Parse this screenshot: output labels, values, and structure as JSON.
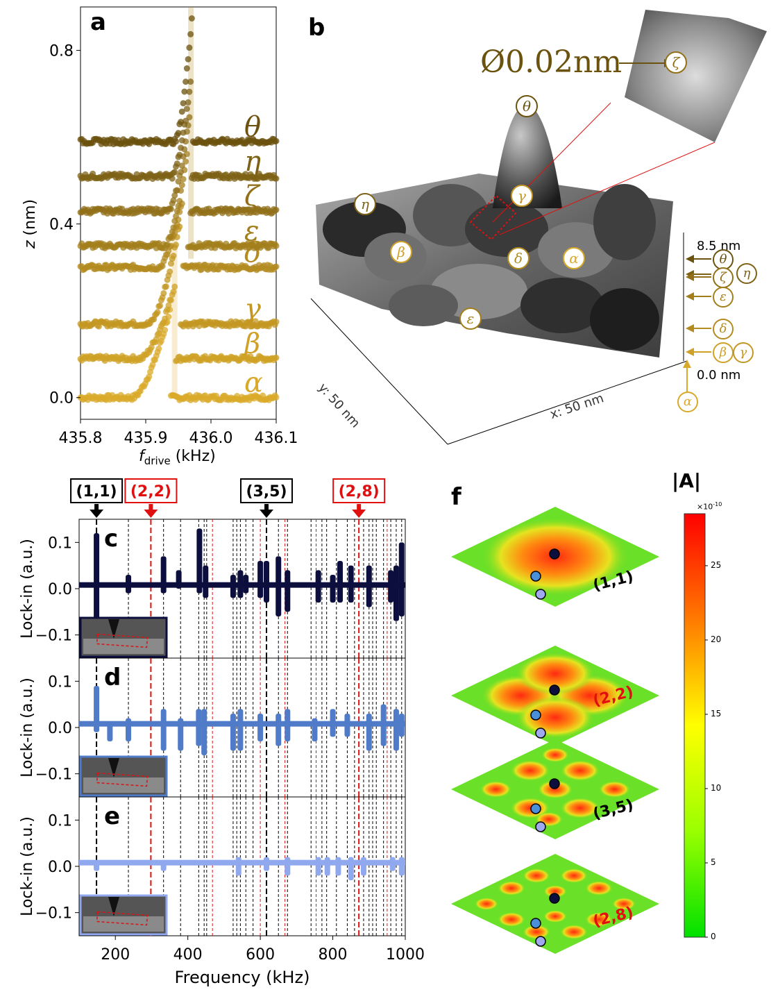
{
  "panel_labels": {
    "a": "a",
    "b": "b",
    "c": "c",
    "d": "d",
    "e": "e",
    "f": "f"
  },
  "colors": {
    "gold_dark": "#6b520e",
    "gold_mid": "#9a7a1e",
    "gold_light": "#d9a92a",
    "navy": "#0c0f3d",
    "mid_blue": "#4f7bc8",
    "light_blue": "#8fa8ee",
    "red": "#e01010",
    "black": "#000000"
  },
  "panel_a": {
    "chart_data": {
      "type": "line",
      "xlabel_main": "f",
      "xlabel_sub": "drive",
      "xlabel_unit": " (kHz)",
      "ylabel_main": "z",
      "ylabel_unit": " (nm)",
      "xlim": [
        435.8,
        436.1
      ],
      "ylim": [
        -0.05,
        0.9
      ],
      "xticks": [
        "435.8",
        "435.9",
        "436.0",
        "436.1"
      ],
      "yticks": [
        "0.0",
        "0.4",
        "0.8"
      ],
      "series": [
        {
          "name": "α",
          "label": "α",
          "baseline": 0.0,
          "rise_start": 435.88,
          "jump": 435.937,
          "peak": 0.2,
          "color": "#d9a92a"
        },
        {
          "name": "β",
          "label": "β",
          "baseline": 0.09,
          "rise_start": 435.892,
          "jump": 435.945,
          "peak": 0.26,
          "color": "#cfa126"
        },
        {
          "name": "γ",
          "label": "γ",
          "baseline": 0.17,
          "rise_start": 435.905,
          "jump": 435.952,
          "peak": 0.4,
          "color": "#c39722"
        },
        {
          "name": "δ",
          "label": "δ",
          "baseline": 0.3,
          "rise_start": 435.92,
          "jump": 435.957,
          "peak": 0.46,
          "color": "#b38b20"
        },
        {
          "name": "ε",
          "label": "ε",
          "baseline": 0.35,
          "rise_start": 435.93,
          "jump": 435.965,
          "peak": 0.58,
          "color": "#a37f1c"
        },
        {
          "name": "ζ",
          "label": "ζ",
          "baseline": 0.43,
          "rise_start": 435.935,
          "jump": 435.968,
          "peak": 0.66,
          "color": "#917019"
        },
        {
          "name": "η",
          "label": "η",
          "baseline": 0.51,
          "rise_start": 435.94,
          "jump": 435.97,
          "peak": 0.74,
          "color": "#7d6116"
        },
        {
          "name": "θ",
          "label": "θ",
          "baseline": 0.59,
          "rise_start": 435.945,
          "jump": 435.972,
          "peak": 0.9,
          "color": "#6b520e"
        }
      ]
    }
  },
  "panel_b": {
    "diameter_label": "Ø0.02nm",
    "y_axis_label": "y: 50 nm",
    "x_axis_label": "x: 50 nm",
    "z_top_label": "8.5 nm",
    "z_bottom_label": "0.0 nm",
    "surface_markers": [
      "θ",
      "γ",
      "η",
      "β",
      "δ",
      "α",
      "ε",
      "ζ"
    ],
    "height_markers": [
      "θ",
      "η",
      "ζ",
      "ε",
      "δ",
      "β",
      "γ",
      "α"
    ]
  },
  "panel_cde": {
    "chart_data": {
      "type": "line",
      "xlabel": "Frequency (kHz)",
      "ylabel": "Lock-in (a.u.)",
      "xlim": [
        100,
        1000
      ],
      "ylim": [
        -0.15,
        0.15
      ],
      "xticks": [
        "200",
        "400",
        "600",
        "800",
        "1000"
      ],
      "yticks": [
        "0.1",
        "0.0",
        "−0.1"
      ],
      "mode_tags": [
        {
          "label": "(1,1)",
          "freq": 148,
          "color": "#000000"
        },
        {
          "label": "(2,2)",
          "freq": 298,
          "color": "#e01010"
        },
        {
          "label": "(3,5)",
          "freq": 617,
          "color": "#000000"
        },
        {
          "label": "(2,8)",
          "freq": 872,
          "color": "#e01010"
        }
      ],
      "black_lines": [
        148,
        236,
        333,
        380,
        430,
        445,
        452,
        525,
        535,
        545,
        560,
        580,
        617,
        650,
        675,
        740,
        770,
        783,
        810,
        840,
        860,
        885,
        900,
        910,
        920,
        940,
        960,
        975,
        990
      ],
      "red_lines": [
        298,
        468,
        600,
        668,
        754,
        872,
        950
      ],
      "series": [
        {
          "name": "c",
          "color": "#0c0f3d",
          "peaks": [
            [
              148,
              0.12,
              -0.1
            ],
            [
              236,
              0.03,
              -0.01
            ],
            [
              333,
              0.07,
              -0.01
            ],
            [
              375,
              0.04,
              0.0
            ],
            [
              432,
              0.13,
              -0.01
            ],
            [
              449,
              0.05,
              -0.02
            ],
            [
              525,
              0.03,
              -0.02
            ],
            [
              545,
              0.04,
              -0.02
            ],
            [
              560,
              0.03,
              -0.01
            ],
            [
              600,
              0.06,
              -0.02
            ],
            [
              617,
              0.06,
              -0.03
            ],
            [
              650,
              0.07,
              -0.06
            ],
            [
              675,
              0.04,
              -0.05
            ],
            [
              760,
              0.04,
              -0.03
            ],
            [
              800,
              0.03,
              -0.03
            ],
            [
              820,
              0.06,
              -0.03
            ],
            [
              850,
              0.05,
              -0.03
            ],
            [
              900,
              0.05,
              -0.04
            ],
            [
              960,
              0.04,
              -0.03
            ],
            [
              975,
              0.05,
              -0.07
            ],
            [
              990,
              0.1,
              -0.06
            ]
          ]
        },
        {
          "name": "d",
          "color": "#4f7bc8",
          "peaks": [
            [
              148,
              0.09,
              -0.01
            ],
            [
              185,
              0.01,
              -0.03
            ],
            [
              236,
              0.02,
              -0.03
            ],
            [
              333,
              0.04,
              -0.05
            ],
            [
              380,
              0.02,
              -0.05
            ],
            [
              430,
              0.04,
              -0.04
            ],
            [
              445,
              0.04,
              -0.06
            ],
            [
              525,
              0.03,
              -0.05
            ],
            [
              545,
              0.04,
              -0.05
            ],
            [
              600,
              0.03,
              -0.03
            ],
            [
              650,
              0.03,
              -0.04
            ],
            [
              675,
              0.04,
              -0.03
            ],
            [
              750,
              0.02,
              -0.03
            ],
            [
              800,
              0.04,
              -0.02
            ],
            [
              840,
              0.03,
              -0.02
            ],
            [
              900,
              0.03,
              -0.05
            ],
            [
              940,
              0.05,
              -0.04
            ],
            [
              975,
              0.04,
              -0.05
            ],
            [
              990,
              0.03,
              -0.02
            ]
          ]
        },
        {
          "name": "e",
          "color": "#8fa8ee",
          "peaks": [
            [
              148,
              0.01,
              -0.01
            ],
            [
              333,
              0.01,
              -0.01
            ],
            [
              540,
              0.02,
              -0.02
            ],
            [
              617,
              0.02,
              -0.01
            ],
            [
              675,
              0.02,
              -0.02
            ],
            [
              760,
              0.02,
              -0.02
            ],
            [
              785,
              0.02,
              -0.02
            ],
            [
              815,
              0.02,
              -0.02
            ],
            [
              850,
              0.02,
              -0.03
            ],
            [
              885,
              0.02,
              -0.02
            ],
            [
              965,
              0.02,
              -0.01
            ],
            [
              990,
              0.02,
              -0.02
            ]
          ]
        }
      ]
    }
  },
  "panel_f": {
    "colorbar_title": "|A|",
    "colorbar_exponent": "×10",
    "colorbar_exponent_power": "-10",
    "colorbar_ticks": [
      "25",
      "20",
      "15",
      "10",
      "5",
      "0"
    ],
    "mode_labels": [
      {
        "label": "(1,1)",
        "color": "#000000"
      },
      {
        "label": "(2,2)",
        "color": "#e01010"
      },
      {
        "label": "(3,5)",
        "color": "#000000"
      },
      {
        "label": "(2,8)",
        "color": "#e01010"
      }
    ]
  }
}
